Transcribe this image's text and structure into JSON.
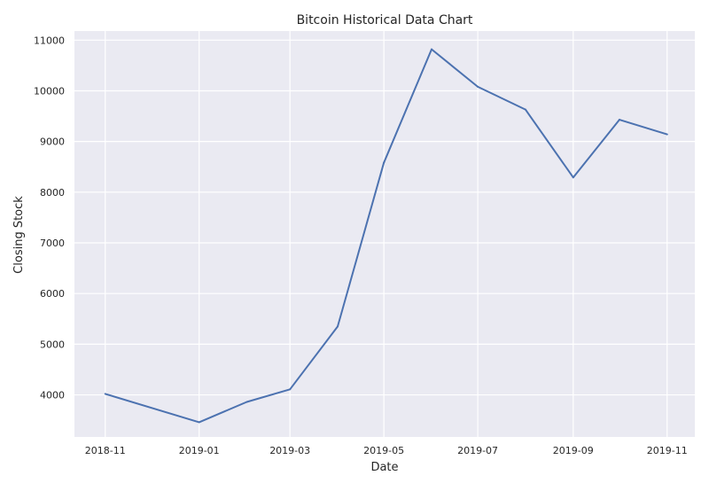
{
  "chart_data": {
    "type": "line",
    "title": "Bitcoin Historical Data Chart",
    "xlabel": "Date",
    "ylabel": "Closing Stock",
    "x_ticks": [
      "2018-11",
      "2019-01",
      "2019-03",
      "2019-05",
      "2019-07",
      "2019-09",
      "2019-11"
    ],
    "y_ticks": [
      4000,
      5000,
      6000,
      7000,
      8000,
      9000,
      10000,
      11000
    ],
    "xlim": [
      "2018-10-12",
      "2019-11-19"
    ],
    "ylim": [
      3170,
      11180
    ],
    "grid": true,
    "series": [
      {
        "color": "#4c72b0",
        "points": [
          {
            "x": "2018-11-01",
            "y": 4020
          },
          {
            "x": "2019-01-01",
            "y": 3460
          },
          {
            "x": "2019-02-01",
            "y": 3860
          },
          {
            "x": "2019-03-01",
            "y": 4110
          },
          {
            "x": "2019-04-01",
            "y": 5350
          },
          {
            "x": "2019-05-01",
            "y": 8580
          },
          {
            "x": "2019-06-01",
            "y": 10820
          },
          {
            "x": "2019-07-01",
            "y": 10080
          },
          {
            "x": "2019-08-01",
            "y": 9630
          },
          {
            "x": "2019-09-01",
            "y": 8290
          },
          {
            "x": "2019-10-01",
            "y": 9430
          },
          {
            "x": "2019-11-01",
            "y": 9140
          }
        ]
      }
    ],
    "colors": {
      "background": "#eaeaf2",
      "grid": "#ffffff",
      "line": "#4c72b0"
    }
  }
}
